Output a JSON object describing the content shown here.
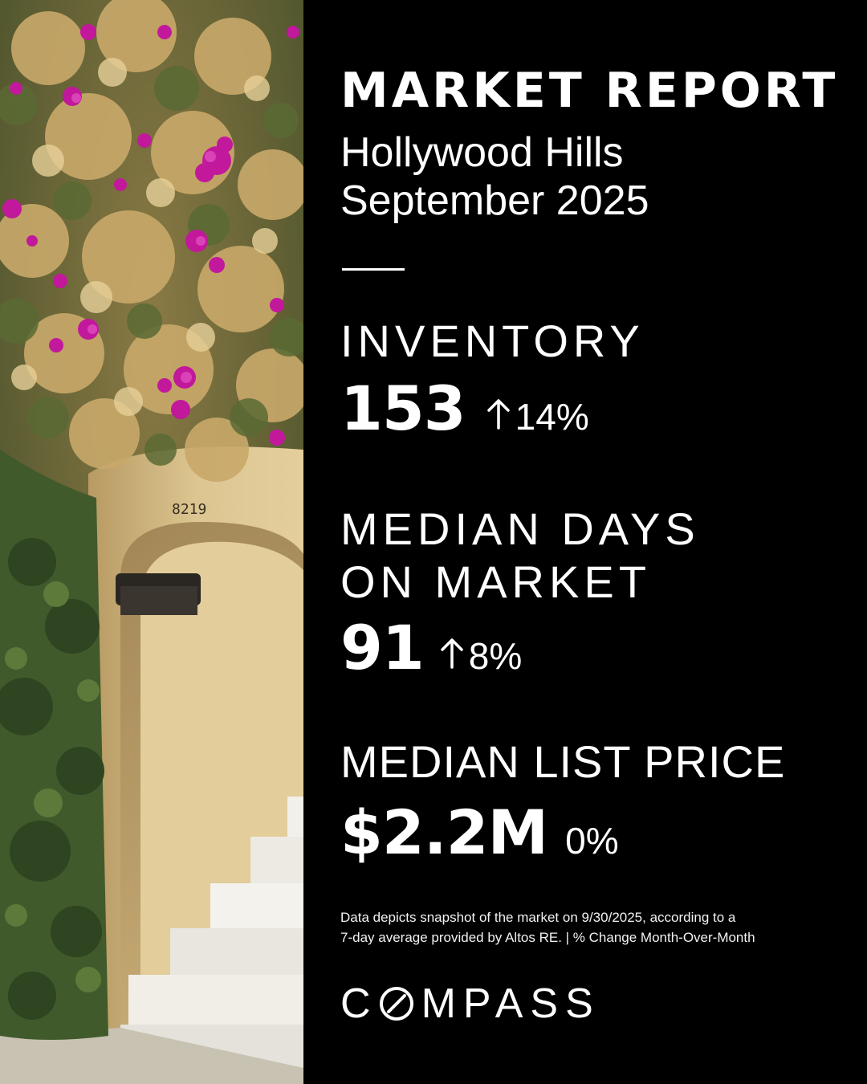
{
  "report": {
    "title": "MARKET REPORT",
    "location": "Hollywood Hills",
    "period": "September 2025"
  },
  "stats": [
    {
      "label": "INVENTORY",
      "value": "153",
      "change": "14%",
      "direction": "up",
      "arrow_icon": "arrow-up-icon"
    },
    {
      "label_line1": "MEDIAN DAYS",
      "label_line2": "ON MARKET",
      "value": "91",
      "change": "8%",
      "direction": "up",
      "arrow_icon": "arrow-up-icon"
    },
    {
      "label": "MEDIAN LIST PRICE",
      "value": "$2.2M",
      "change": "0%",
      "direction": "none"
    }
  ],
  "footnote": {
    "line1": "Data depicts snapshot of the market on 9/30/2025, according to a",
    "line2": "7-day average provided by Altos RE. | % Change Month-Over-Month"
  },
  "brand": {
    "name": "COMPASS",
    "name_rest": "MPASS",
    "letter_c": "C"
  },
  "photo": {
    "house_number": "8219",
    "description_icon": "bougainvillea-archway-photo"
  },
  "colors": {
    "background": "#000000",
    "text": "#ffffff",
    "bougainvillea": "#c2189b",
    "stucco": "#d8c08c"
  }
}
